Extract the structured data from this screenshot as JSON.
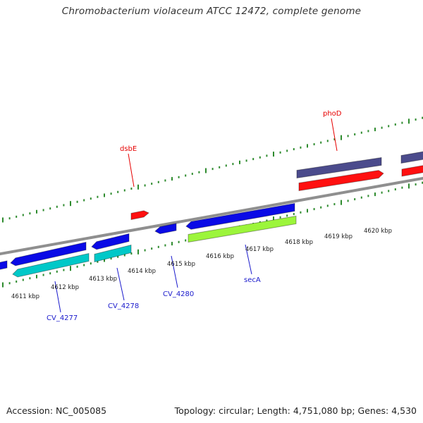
{
  "title": "Chromobacterium violaceum ATCC 12472, complete genome",
  "footer": {
    "accession": "Accession: NC_005085",
    "summary": "Topology: circular; Length: 4,751,080 bp; Genes: 4,530"
  },
  "colors": {
    "backbone": "#8f8f8f",
    "tick": "#2e8b2e",
    "cds_forward": "#0a0ae6",
    "cds_reverse": "#00c8c8",
    "trna": "#ff1010",
    "rrna": "#9cf53b",
    "other": "#4b4b8c",
    "label_red": "#e60000",
    "label_blue": "#1a1acc"
  },
  "scale_labels": [
    "4611 kbp",
    "4612 kbp",
    "4613 kbp",
    "4614 kbp",
    "4615 kbp",
    "4616 kbp",
    "4617 kbp",
    "4618 kbp",
    "4619 kbp",
    "4620 kbp"
  ],
  "gene_labels": [
    {
      "text": "dsbE",
      "color": "red"
    },
    {
      "text": "phoD",
      "color": "red"
    },
    {
      "text": "CV_4277",
      "color": "blue"
    },
    {
      "text": "CV_4278",
      "color": "blue"
    },
    {
      "text": "CV_4280",
      "color": "blue"
    },
    {
      "text": "secA",
      "color": "blue"
    }
  ]
}
